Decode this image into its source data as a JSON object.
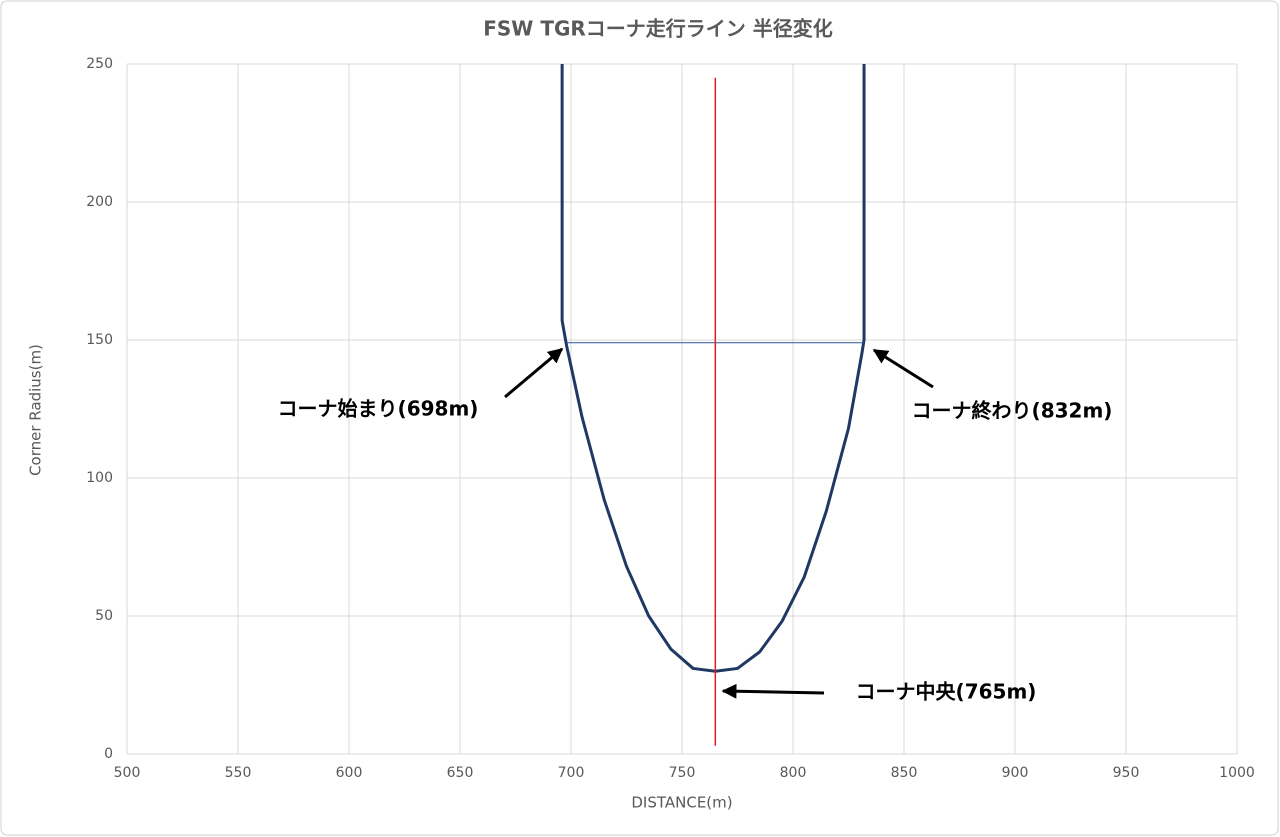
{
  "chart_data": {
    "type": "line",
    "title": "FSW TGRコーナ走行ライン 半径変化",
    "x_label": "DISTANCE(m)",
    "y_label": "Corner Radius(m)",
    "xlim": [
      500,
      1000
    ],
    "xticks": [
      500,
      550,
      600,
      650,
      700,
      750,
      800,
      850,
      900,
      950,
      1000
    ],
    "ylim": [
      0,
      250
    ],
    "yticks": [
      0,
      50,
      100,
      150,
      200,
      250
    ],
    "grid": true,
    "series": [
      {
        "color": "#1f3864",
        "width": 3,
        "x": [
          696,
          696,
          698,
          705,
          715,
          725,
          735,
          745,
          755,
          765,
          775,
          785,
          795,
          805,
          815,
          825,
          831,
          832,
          832
        ],
        "values": [
          250,
          157,
          148,
          122,
          92,
          68,
          50,
          38,
          31,
          30,
          31,
          37,
          48,
          64,
          88,
          118,
          145,
          150,
          250
        ]
      },
      {
        "color": "#2e5597",
        "width": 1,
        "x": [
          698,
          832
        ],
        "values": [
          149,
          149
        ]
      },
      {
        "color": "#e02020",
        "width": 1.5,
        "x": [
          765,
          765
        ],
        "values": [
          3,
          245
        ]
      }
    ],
    "annotations": [
      "コーナ始まり(698m)",
      "コーナ終わり(832m)",
      "コーナ中央(765m)"
    ]
  }
}
